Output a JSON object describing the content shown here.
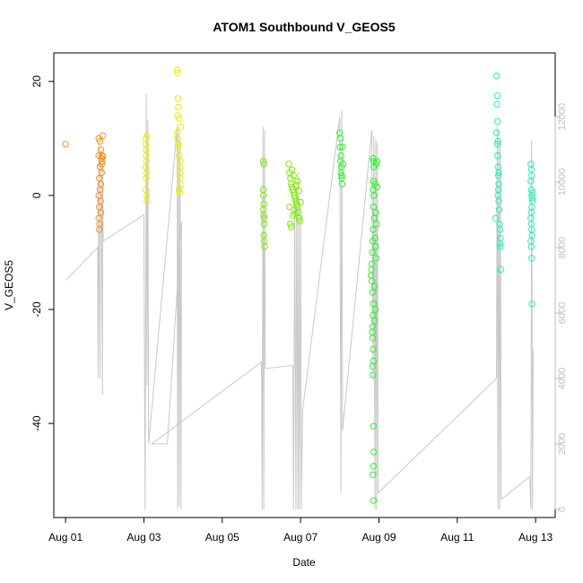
{
  "chart_data": {
    "type": "scatter",
    "title": "ATOM1 Southbound V_GEOS5",
    "xlabel": "Date",
    "ylabel": "V_GEOS5",
    "x_ticks": [
      "Aug 01",
      "Aug 03",
      "Aug 05",
      "Aug 07",
      "Aug 09",
      "Aug 11",
      "Aug 13"
    ],
    "y_ticks": [
      "-40",
      "-20",
      "0",
      "20"
    ],
    "y2_ticks": [
      "0",
      "2000",
      "4000",
      "6000",
      "8000",
      "10000",
      "12000"
    ],
    "xlim_days": [
      0.7,
      13.5
    ],
    "ylim": [
      -56.5,
      25
    ],
    "y2lim": [
      -250,
      13950
    ],
    "grid": false,
    "series": [
      {
        "color": "#FF8C1A",
        "points": [
          [
            1.0,
            9.0
          ],
          [
            1.85,
            10.0
          ],
          [
            1.85,
            7.0
          ],
          [
            1.86,
            3.0
          ],
          [
            1.85,
            0.0
          ],
          [
            1.86,
            -2.0
          ],
          [
            1.85,
            -4.0
          ],
          [
            1.86,
            -6.0
          ],
          [
            1.88,
            9.5
          ],
          [
            1.88,
            5.0
          ],
          [
            1.88,
            1.0
          ],
          [
            1.89,
            -1.0
          ],
          [
            1.9,
            8.0
          ],
          [
            1.92,
            6.5
          ],
          [
            1.93,
            5.5
          ],
          [
            1.94,
            7.0
          ],
          [
            1.95,
            10.5
          ],
          [
            1.92,
            4.0
          ],
          [
            1.9,
            2.0
          ],
          [
            1.9,
            -3.0
          ],
          [
            1.87,
            -5.0
          ],
          [
            1.93,
            6.0
          ],
          [
            1.95,
            6.8
          ]
        ]
      },
      {
        "color": "#E8EE00",
        "points": [
          [
            3.05,
            10.0
          ],
          [
            3.05,
            9.0
          ],
          [
            3.06,
            7.0
          ],
          [
            3.05,
            5.0
          ],
          [
            3.06,
            3.0
          ],
          [
            3.05,
            1.0
          ],
          [
            3.07,
            0.0
          ],
          [
            3.08,
            -1.0
          ],
          [
            3.07,
            4.0
          ],
          [
            3.08,
            10.5
          ],
          [
            3.06,
            8.0
          ],
          [
            3.07,
            6.0
          ],
          [
            3.85,
            22.0
          ],
          [
            3.86,
            21.5
          ],
          [
            3.87,
            17.0
          ],
          [
            3.88,
            15.5
          ],
          [
            3.86,
            14.0
          ],
          [
            3.9,
            13.5
          ],
          [
            3.85,
            11.0
          ],
          [
            3.88,
            9.0
          ],
          [
            3.9,
            7.0
          ],
          [
            3.92,
            5.0
          ],
          [
            3.93,
            3.0
          ],
          [
            3.9,
            1.0
          ],
          [
            3.88,
            8.5
          ],
          [
            3.86,
            10.0
          ],
          [
            3.94,
            12.0
          ],
          [
            3.92,
            4.0
          ],
          [
            3.95,
            2.0
          ],
          [
            3.93,
            6.0
          ],
          [
            3.91,
            0.5
          ]
        ]
      },
      {
        "color": "#7FEA00",
        "points": [
          [
            6.05,
            6.0
          ],
          [
            6.06,
            5.5
          ],
          [
            6.05,
            1.0
          ],
          [
            6.05,
            0.0
          ],
          [
            6.06,
            -1.5
          ],
          [
            6.05,
            -2.5
          ],
          [
            6.06,
            -3.5
          ],
          [
            6.07,
            -5.0
          ],
          [
            6.06,
            -7.0
          ],
          [
            6.07,
            -8.0
          ],
          [
            6.08,
            -9.0
          ],
          [
            6.07,
            -4.0
          ],
          [
            6.7,
            5.5
          ],
          [
            6.72,
            4.0
          ],
          [
            6.74,
            3.0
          ],
          [
            6.76,
            2.0
          ],
          [
            6.78,
            1.5
          ],
          [
            6.8,
            1.0
          ],
          [
            6.82,
            0.5
          ],
          [
            6.84,
            0.0
          ],
          [
            6.86,
            -0.5
          ],
          [
            6.88,
            -1.0
          ],
          [
            6.9,
            -1.5
          ],
          [
            6.92,
            -2.0
          ],
          [
            6.94,
            -3.0
          ],
          [
            6.96,
            -4.0
          ],
          [
            6.98,
            -4.5
          ],
          [
            6.72,
            -2.0
          ],
          [
            6.74,
            -5.0
          ],
          [
            6.76,
            -5.5
          ],
          [
            6.8,
            -3.5
          ],
          [
            6.84,
            -2.5
          ],
          [
            6.88,
            1.8
          ],
          [
            6.92,
            2.5
          ],
          [
            6.96,
            0.8
          ],
          [
            7.0,
            -1.2
          ],
          [
            6.78,
            4.5
          ],
          [
            6.82,
            3.5
          ],
          [
            6.86,
            -3.2
          ]
        ]
      },
      {
        "color": "#33EE33",
        "points": [
          [
            8.0,
            11.0
          ],
          [
            8.02,
            10.0
          ],
          [
            8.01,
            8.5
          ],
          [
            8.03,
            7.0
          ],
          [
            8.02,
            6.0
          ],
          [
            8.04,
            5.0
          ],
          [
            8.03,
            4.0
          ],
          [
            8.05,
            3.0
          ],
          [
            8.06,
            2.0
          ],
          [
            8.07,
            8.5
          ],
          [
            8.08,
            5.5
          ],
          [
            8.05,
            3.5
          ],
          [
            8.85,
            6.5
          ],
          [
            8.86,
            6.0
          ],
          [
            8.87,
            5.0
          ],
          [
            8.86,
            2.5
          ],
          [
            8.85,
            1.0
          ],
          [
            8.87,
            0.0
          ],
          [
            8.86,
            -2.0
          ],
          [
            8.88,
            -4.0
          ],
          [
            8.85,
            -6.0
          ],
          [
            8.84,
            -8.0
          ],
          [
            8.83,
            -10.0
          ],
          [
            8.82,
            -12.0
          ],
          [
            8.81,
            -13.0
          ],
          [
            8.8,
            -14.0
          ],
          [
            8.82,
            -15.0
          ],
          [
            8.84,
            -17.0
          ],
          [
            8.86,
            -19.0
          ],
          [
            8.85,
            -21.0
          ],
          [
            8.84,
            -23.0
          ],
          [
            8.83,
            -24.0
          ],
          [
            8.84,
            -25.0
          ],
          [
            8.85,
            -27.0
          ],
          [
            8.86,
            -29.0
          ],
          [
            8.84,
            -30.0
          ],
          [
            8.85,
            -31.5
          ],
          [
            8.86,
            -40.5
          ],
          [
            8.87,
            -45.0
          ],
          [
            8.86,
            -47.5
          ],
          [
            8.85,
            -49.0
          ],
          [
            8.86,
            -53.5
          ],
          [
            8.9,
            2.0
          ],
          [
            8.92,
            -3.0
          ],
          [
            8.94,
            -5.0
          ],
          [
            8.9,
            -7.5
          ],
          [
            8.92,
            -9.0
          ],
          [
            8.93,
            -11.0
          ],
          [
            8.88,
            -16.0
          ],
          [
            8.91,
            -20.0
          ],
          [
            8.89,
            -22.0
          ],
          [
            8.93,
            5.5
          ],
          [
            8.95,
            6.0
          ],
          [
            8.95,
            1.5
          ]
        ]
      },
      {
        "color": "#22F0B4",
        "points": [
          [
            12.0,
            21.0
          ],
          [
            12.02,
            17.5
          ],
          [
            12.01,
            16.0
          ],
          [
            12.03,
            13.0
          ],
          [
            12.0,
            11.0
          ],
          [
            12.02,
            9.0
          ],
          [
            12.03,
            7.0
          ],
          [
            12.04,
            5.0
          ],
          [
            12.05,
            3.5
          ],
          [
            12.06,
            2.0
          ],
          [
            12.05,
            1.0
          ],
          [
            12.04,
            0.0
          ],
          [
            12.06,
            -1.0
          ],
          [
            12.07,
            -2.5
          ],
          [
            11.98,
            -4.0
          ],
          [
            12.08,
            -5.0
          ],
          [
            12.09,
            -6.0
          ],
          [
            12.1,
            -7.5
          ],
          [
            12.09,
            -8.5
          ],
          [
            12.1,
            -9.0
          ],
          [
            12.11,
            -13.0
          ],
          [
            12.06,
            4.0
          ],
          [
            12.04,
            9.5
          ],
          [
            12.88,
            5.5
          ],
          [
            12.89,
            4.5
          ],
          [
            12.9,
            3.5
          ],
          [
            12.88,
            2.5
          ],
          [
            12.89,
            1.0
          ],
          [
            12.9,
            0.0
          ],
          [
            12.91,
            -0.5
          ],
          [
            12.92,
            -1.0
          ],
          [
            12.9,
            -2.0
          ],
          [
            12.89,
            -3.0
          ],
          [
            12.88,
            -4.0
          ],
          [
            12.89,
            -5.0
          ],
          [
            12.9,
            -6.0
          ],
          [
            12.91,
            -7.0
          ],
          [
            12.88,
            -8.0
          ],
          [
            12.89,
            -9.0
          ],
          [
            12.9,
            -11.0
          ],
          [
            12.91,
            -19.0
          ],
          [
            12.92,
            0.5
          ]
        ]
      }
    ],
    "secondary_series": {
      "color": "#c8c8c8",
      "path": [
        [
          1.0,
          7000
        ],
        [
          1.82,
          8000
        ],
        [
          1.83,
          4000
        ],
        [
          1.85,
          11200
        ],
        [
          1.86,
          7000
        ],
        [
          1.88,
          4000
        ],
        [
          1.9,
          11000
        ],
        [
          1.92,
          8200
        ],
        [
          1.94,
          3500
        ],
        [
          1.95,
          10800
        ],
        [
          1.96,
          8200
        ],
        [
          3.0,
          9000
        ],
        [
          3.03,
          0
        ],
        [
          3.06,
          12700
        ],
        [
          3.08,
          3800
        ],
        [
          3.1,
          11900
        ],
        [
          3.12,
          2000
        ],
        [
          3.85,
          11700
        ],
        [
          3.86,
          0
        ],
        [
          3.88,
          11500
        ],
        [
          3.9,
          100
        ],
        [
          3.92,
          11300
        ],
        [
          3.95,
          0
        ],
        [
          3.96,
          8800
        ],
        [
          3.6,
          2000
        ],
        [
          3.2,
          2000
        ],
        [
          6.0,
          4500
        ],
        [
          6.02,
          0
        ],
        [
          6.04,
          11700
        ],
        [
          6.06,
          0
        ],
        [
          6.08,
          11600
        ],
        [
          6.1,
          4300
        ],
        [
          6.8,
          4400
        ],
        [
          6.82,
          0
        ],
        [
          6.85,
          9500
        ],
        [
          6.88,
          0
        ],
        [
          6.9,
          9800
        ],
        [
          6.93,
          0
        ],
        [
          6.95,
          10300
        ],
        [
          6.97,
          0
        ],
        [
          7.0,
          9200
        ],
        [
          7.02,
          0
        ],
        [
          7.05,
          3000
        ],
        [
          8.0,
          12000
        ],
        [
          8.03,
          500
        ],
        [
          8.05,
          12200
        ],
        [
          8.07,
          2400
        ],
        [
          8.82,
          11600
        ],
        [
          8.85,
          4000
        ],
        [
          8.87,
          11400
        ],
        [
          8.9,
          0
        ],
        [
          8.92,
          11300
        ],
        [
          8.94,
          0
        ],
        [
          8.96,
          11200
        ],
        [
          8.98,
          500
        ],
        [
          12.0,
          4000
        ],
        [
          12.02,
          11700
        ],
        [
          12.04,
          0
        ],
        [
          12.06,
          11600
        ],
        [
          12.08,
          0
        ],
        [
          12.1,
          11200
        ],
        [
          12.12,
          300
        ],
        [
          12.85,
          1000
        ],
        [
          12.88,
          0
        ],
        [
          12.9,
          11300
        ],
        [
          12.92,
          0
        ],
        [
          12.94,
          4900
        ]
      ]
    }
  }
}
